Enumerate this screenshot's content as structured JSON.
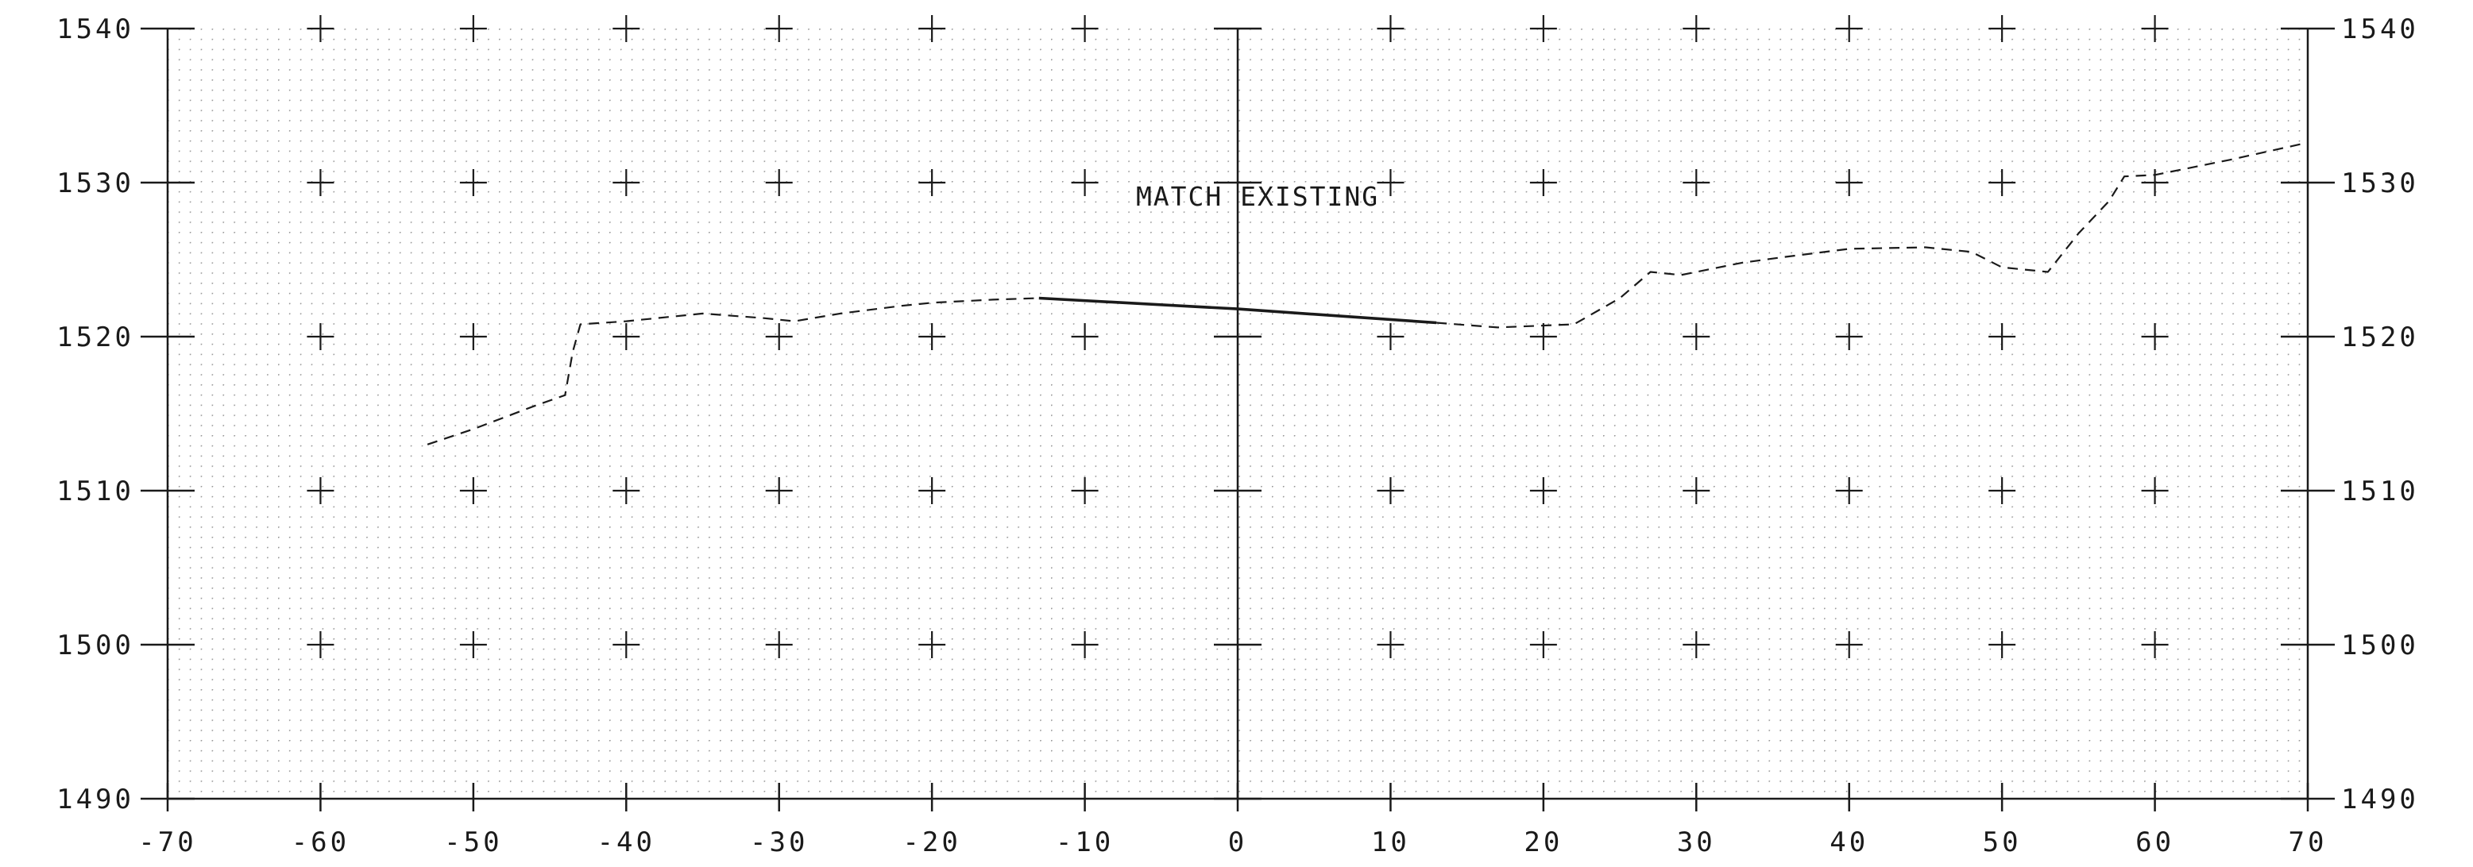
{
  "chart_data": {
    "type": "line",
    "title": "",
    "xlabel": "",
    "ylabel": "",
    "xlim": [
      -70,
      70
    ],
    "ylim": [
      1490,
      1540
    ],
    "x_ticks": [
      -70,
      -60,
      -50,
      -40,
      -30,
      -20,
      -10,
      0,
      10,
      20,
      30,
      40,
      50,
      60,
      70
    ],
    "x_tick_labels": [
      "-70",
      "-60",
      "-50",
      "-40",
      "-30",
      "-20",
      "-10",
      "0",
      "10",
      "20",
      "30",
      "40",
      "50",
      "60",
      "70"
    ],
    "y_ticks": [
      1490,
      1500,
      1510,
      1520,
      1530,
      1540
    ],
    "y_tick_labels": [
      "1490",
      "1500",
      "1510",
      "1520",
      "1530",
      "1540"
    ],
    "grid": true,
    "series": [
      {
        "style": "dashed",
        "x": [
          -53,
          -50,
          -46,
          -44,
          -43.5,
          -43,
          -40,
          -35,
          -31,
          -29,
          -26,
          -22,
          -20,
          -16,
          -13
        ],
        "y": [
          1513,
          1514,
          1515.5,
          1516.2,
          1519,
          1520.8,
          1521,
          1521.5,
          1521.2,
          1521,
          1521.5,
          1522,
          1522.2,
          1522.4,
          1522.5
        ]
      },
      {
        "style": "solid",
        "x": [
          -13,
          0,
          13
        ],
        "y": [
          1522.5,
          1521.8,
          1520.9
        ]
      },
      {
        "style": "dashed",
        "x": [
          13,
          17,
          22,
          25,
          27,
          29,
          33,
          36,
          40,
          45,
          48,
          50,
          53,
          55,
          57,
          58,
          60,
          65,
          70
        ],
        "y": [
          1520.9,
          1520.6,
          1520.8,
          1522.5,
          1524.2,
          1524,
          1524.8,
          1525.2,
          1525.7,
          1525.8,
          1525.5,
          1524.5,
          1524.2,
          1526.7,
          1528.8,
          1530.4,
          1530.5,
          1531.5,
          1532.6
        ]
      }
    ],
    "annotations": [
      {
        "text": "MATCH EXISTING",
        "x": 1.3,
        "y": 1528.5
      }
    ]
  }
}
